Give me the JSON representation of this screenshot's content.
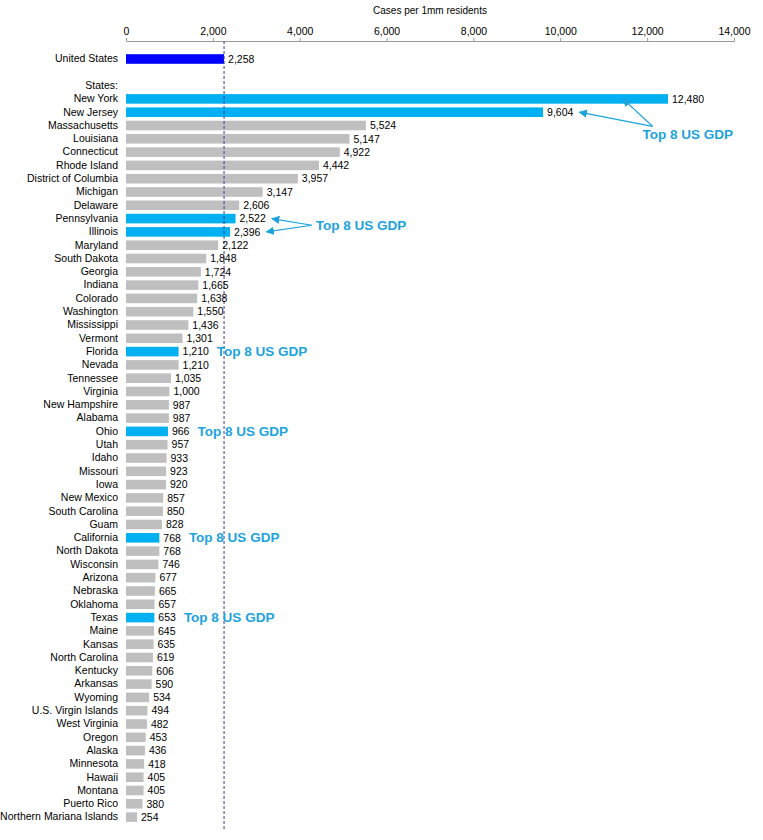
{
  "chart_data": {
    "type": "bar",
    "orientation": "horizontal",
    "x_label": "Cases per 1mm residents",
    "categories": [
      "United States",
      null,
      "States:",
      "New York",
      "New Jersey",
      "Massachusetts",
      "Louisiana",
      "Connecticut",
      "Rhode Island",
      "District of Columbia",
      "Michigan",
      "Delaware",
      "Pennsylvania",
      "Illinois",
      "Maryland",
      "South Dakota",
      "Georgia",
      "Indiana",
      "Colorado",
      "Washington",
      "Mississippi",
      "Vermont",
      "Florida",
      "Nevada",
      "Tennessee",
      "Virginia",
      "New Hampshire",
      "Alabama",
      "Ohio",
      "Utah",
      "Idaho",
      "Missouri",
      "Iowa",
      "New Mexico",
      "South Carolina",
      "Guam",
      "California",
      "North Dakota",
      "Wisconsin",
      "Arizona",
      "Nebraska",
      "Oklahoma",
      "Texas",
      "Maine",
      "Kansas",
      "North Carolina",
      "Kentucky",
      "Arkansas",
      "Wyoming",
      "U.S. Virgin Islands",
      "West Virginia",
      "Oregon",
      "Alaska",
      "Minnesota",
      "Hawaii",
      "Montana",
      "Puerto Rico",
      "Northern Mariana Islands"
    ],
    "values": [
      2258,
      null,
      null,
      12480,
      9604,
      5524,
      5147,
      4922,
      4442,
      3957,
      3147,
      2606,
      2522,
      2396,
      2122,
      1848,
      1724,
      1665,
      1638,
      1550,
      1436,
      1301,
      1210,
      1210,
      1035,
      1000,
      987,
      987,
      966,
      957,
      933,
      923,
      920,
      857,
      850,
      828,
      768,
      768,
      746,
      677,
      665,
      657,
      653,
      645,
      635,
      619,
      606,
      590,
      534,
      494,
      482,
      453,
      436,
      418,
      405,
      405,
      380,
      254
    ],
    "value_labels": [
      "2,258",
      null,
      null,
      "12,480",
      "9,604",
      "5,524",
      "5,147",
      "4,922",
      "4,442",
      "3,957",
      "3,147",
      "2,606",
      "2,522",
      "2,396",
      "2,122",
      "1,848",
      "1,724",
      "1,665",
      "1,638",
      "1,550",
      "1,436",
      "1,301",
      "1,210",
      "1,210",
      "1,035",
      "1,000",
      "987",
      "987",
      "966",
      "957",
      "933",
      "923",
      "920",
      "857",
      "850",
      "828",
      "768",
      "768",
      "746",
      "677",
      "665",
      "657",
      "653",
      "645",
      "635",
      "619",
      "606",
      "590",
      "534",
      "494",
      "482",
      "453",
      "436",
      "418",
      "405",
      "405",
      "380",
      "254"
    ],
    "colors": [
      "#0000ff",
      null,
      null,
      "#00b0f0",
      "#00b0f0",
      "#bfbfbf",
      "#bfbfbf",
      "#bfbfbf",
      "#bfbfbf",
      "#bfbfbf",
      "#bfbfbf",
      "#bfbfbf",
      "#00b0f0",
      "#00b0f0",
      "#bfbfbf",
      "#bfbfbf",
      "#bfbfbf",
      "#bfbfbf",
      "#bfbfbf",
      "#bfbfbf",
      "#bfbfbf",
      "#bfbfbf",
      "#00b0f0",
      "#bfbfbf",
      "#bfbfbf",
      "#bfbfbf",
      "#bfbfbf",
      "#bfbfbf",
      "#00b0f0",
      "#bfbfbf",
      "#bfbfbf",
      "#bfbfbf",
      "#bfbfbf",
      "#bfbfbf",
      "#bfbfbf",
      "#bfbfbf",
      "#00b0f0",
      "#bfbfbf",
      "#bfbfbf",
      "#bfbfbf",
      "#bfbfbf",
      "#bfbfbf",
      "#00b0f0",
      "#bfbfbf",
      "#bfbfbf",
      "#bfbfbf",
      "#bfbfbf",
      "#bfbfbf",
      "#bfbfbf",
      "#bfbfbf",
      "#bfbfbf",
      "#bfbfbf",
      "#bfbfbf",
      "#bfbfbf",
      "#bfbfbf",
      "#bfbfbf",
      "#bfbfbf",
      "#bfbfbf"
    ],
    "xlim": [
      0,
      14000
    ],
    "xticks": [
      0,
      {
        "value": 2000,
        "label": "2,000"
      },
      {
        "value": 4000,
        "label": "4,000"
      },
      {
        "value": 6000,
        "label": "6,000"
      },
      {
        "value": 8000,
        "label": "8,000"
      },
      {
        "value": 10000,
        "label": "10,000"
      },
      {
        "value": 12000,
        "label": "12,000"
      },
      {
        "value": 14000,
        "label": "14,000"
      }
    ],
    "reference_line": 2258,
    "data_labels": true,
    "grid": false,
    "annotations": [
      {
        "text": "Top 8 US GDP",
        "targets": [
          "New York",
          "New Jersey"
        ]
      },
      {
        "text": "Top 8 US GDP",
        "targets": [
          "Pennsylvania",
          "Illinois"
        ]
      },
      {
        "text": "Top 8 US GDP",
        "targets": [
          "Florida"
        ]
      },
      {
        "text": "Top 8 US GDP",
        "targets": [
          "Ohio"
        ]
      },
      {
        "text": "Top 8 US GDP",
        "targets": [
          "California"
        ]
      },
      {
        "text": "Top 8 US GDP",
        "targets": [
          "Texas"
        ]
      }
    ]
  }
}
